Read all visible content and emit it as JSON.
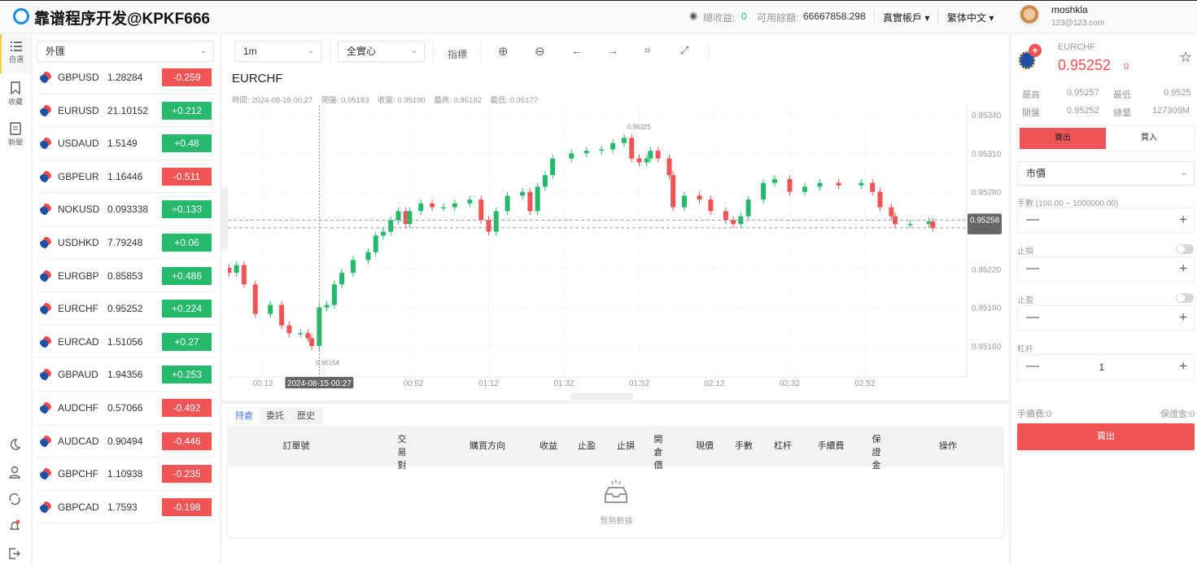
{
  "header": {
    "brand": "靠谱程序开发@KPKF666",
    "total_profit_label": "總收益:",
    "total_profit": "0",
    "balance_label": "可用餘額:",
    "balance": "66667858.298",
    "account": "真實帳戶",
    "language": "繁体中文",
    "user_name": "moshkla",
    "user_email": "123@123.com"
  },
  "sidebar": {
    "items": [
      {
        "label": "自選",
        "icon": "list-icon"
      },
      {
        "label": "收藏",
        "icon": "bookmark-icon"
      },
      {
        "label": "新聞",
        "icon": "news-icon"
      }
    ],
    "bottom_icons": [
      "moon-icon",
      "user-icon",
      "refresh-icon",
      "bell-icon",
      "logout-icon"
    ]
  },
  "symbol_list": {
    "category": "外匯",
    "rows": [
      {
        "symbol": "GBPUSD",
        "price": "1.28284",
        "change": "-0.259"
      },
      {
        "symbol": "EURUSD",
        "price": "21.10152",
        "change": "+0.212"
      },
      {
        "symbol": "USDAUD",
        "price": "1.5149",
        "change": "+0.48"
      },
      {
        "symbol": "GBPEUR",
        "price": "1.16446",
        "change": "-0.511"
      },
      {
        "symbol": "NOKUSD",
        "price": "0.093338",
        "change": "+0.133"
      },
      {
        "symbol": "USDHKD",
        "price": "7.79248",
        "change": "+0.06"
      },
      {
        "symbol": "EURGBP",
        "price": "0.85853",
        "change": "+0.486"
      },
      {
        "symbol": "EURCHF",
        "price": "0.95252",
        "change": "+0.224"
      },
      {
        "symbol": "EURCAD",
        "price": "1.51056",
        "change": "+0.27"
      },
      {
        "symbol": "GBPAUD",
        "price": "1.94356",
        "change": "+0.253"
      },
      {
        "symbol": "AUDCHF",
        "price": "0.57066",
        "change": "-0.492"
      },
      {
        "symbol": "AUDCAD",
        "price": "0.90494",
        "change": "-0.446"
      },
      {
        "symbol": "GBPCHF",
        "price": "1.10938",
        "change": "-0.235"
      },
      {
        "symbol": "GBPCAD",
        "price": "1.7593",
        "change": "-0.198"
      }
    ]
  },
  "colors": {
    "up": "#26b96b",
    "down": "#f05454",
    "accent": "#3a7afe",
    "highlight": "#f5c842"
  },
  "toolbar": {
    "interval": "1m",
    "mode": "全實心",
    "indicators": "指標",
    "icons": [
      "zoom-in-icon",
      "zoom-out-icon",
      "arrow-left-icon",
      "arrow-right-icon",
      "crop-icon",
      "fullscreen-icon"
    ]
  },
  "chart_title": "EURCHF",
  "crosshair_info": {
    "time": "時間: 2024-08-15 00:27",
    "open": "開盤: 0.95183",
    "close": "收盤: 0.95190",
    "high": "最高: 0.95192",
    "low": "最低: 0.95177",
    "time_tag": "2024-08-15 00:27"
  },
  "chart_data": {
    "type": "candlestick",
    "y_ticks": [
      "0.95340",
      "0.95310",
      "0.95280",
      "0.95220",
      "0.95190",
      "0.95160"
    ],
    "x_ticks": [
      "00:12",
      "00:52",
      "01:12",
      "01:32",
      "01:52",
      "02:12",
      "02:32",
      "02:52"
    ],
    "ylim": [
      0.95131,
      0.95351
    ],
    "xlim": [
      "00:03",
      "03:25"
    ],
    "max_label": "0.95325",
    "min_label": "0.95154",
    "last_price": "0.95258",
    "last_price_2": "0.95252",
    "candles": [
      [
        "00:03",
        0.95217
      ],
      [
        "00:05",
        0.95223
      ],
      [
        "00:07",
        0.95208
      ],
      [
        "00:10",
        0.95185
      ],
      [
        "00:14",
        0.95192
      ],
      [
        "00:17",
        0.95176
      ],
      [
        "00:19",
        0.9517
      ],
      [
        "00:22",
        0.9517
      ],
      [
        "00:24",
        0.95166
      ],
      [
        "00:25",
        0.9516
      ],
      [
        "00:27",
        0.9519
      ],
      [
        "00:29",
        0.95192
      ],
      [
        "00:31",
        0.95208
      ],
      [
        "00:33",
        0.95217
      ],
      [
        "00:36",
        0.95227
      ],
      [
        "00:40",
        0.95233
      ],
      [
        "00:42",
        0.95246
      ],
      [
        "00:44",
        0.95249
      ],
      [
        "00:46",
        0.95258
      ],
      [
        "00:48",
        0.95265
      ],
      [
        "00:50",
        0.95255
      ],
      [
        "00:51",
        0.95265
      ],
      [
        "00:54",
        0.95271
      ],
      [
        "00:57",
        0.95268
      ],
      [
        "01:00",
        0.95268
      ],
      [
        "01:03",
        0.95271
      ],
      [
        "01:07",
        0.95274
      ],
      [
        "01:10",
        0.95258
      ],
      [
        "01:12",
        0.95249
      ],
      [
        "01:14",
        0.95265
      ],
      [
        "01:17",
        0.95277
      ],
      [
        "01:21",
        0.9528
      ],
      [
        "01:23",
        0.95265
      ],
      [
        "01:25",
        0.95284
      ],
      [
        "01:27",
        0.95293
      ],
      [
        "01:29",
        0.95306
      ],
      [
        "01:34",
        0.9531
      ],
      [
        "01:38",
        0.95312
      ],
      [
        "01:42",
        0.95313
      ],
      [
        "01:45",
        0.95318
      ],
      [
        "01:48",
        0.95322
      ],
      [
        "01:50",
        0.95306
      ],
      [
        "01:52",
        0.95303
      ],
      [
        "01:54",
        0.95306
      ],
      [
        "01:55",
        0.95312
      ],
      [
        "01:57",
        0.95306
      ],
      [
        "02:00",
        0.95293
      ],
      [
        "02:01",
        0.95268
      ],
      [
        "02:04",
        0.95277
      ],
      [
        "02:08",
        0.95274
      ],
      [
        "02:11",
        0.95265
      ],
      [
        "02:15",
        0.95258
      ],
      [
        "02:17",
        0.95255
      ],
      [
        "02:19",
        0.95261
      ],
      [
        "02:21",
        0.95274
      ],
      [
        "02:25",
        0.95287
      ],
      [
        "02:28",
        0.9529
      ],
      [
        "02:32",
        0.9528
      ],
      [
        "02:36",
        0.95284
      ],
      [
        "02:40",
        0.95287
      ],
      [
        "02:45",
        0.95285
      ],
      [
        "02:51",
        0.95287
      ],
      [
        "02:54",
        0.9528
      ],
      [
        "02:56",
        0.95268
      ],
      [
        "02:59",
        0.95261
      ],
      [
        "03:00",
        0.95255
      ],
      [
        "03:04",
        0.95255
      ],
      [
        "03:09",
        0.95257
      ],
      [
        "03:10",
        0.95252
      ]
    ]
  },
  "positions": {
    "tabs": [
      "持倉",
      "委託",
      "歷史"
    ],
    "columns": [
      "訂單號",
      "交易對",
      "購買方向",
      "收益",
      "止盈",
      "止損",
      "開倉價",
      "現價",
      "手數",
      "杠杆",
      "手續費",
      "保證金",
      "操作"
    ],
    "empty": "暫無數據"
  },
  "ticket": {
    "symbol": "EURCHF",
    "price": "0.95252",
    "change": "0",
    "high_label": "最高",
    "high": "0.95257",
    "low_label": "最低",
    "low": "0.9525",
    "open_label": "開盤",
    "open": "0.95252",
    "volume_label": "總量",
    "volume": "127309M",
    "sell_tab": "賣出",
    "buy_tab": "買入",
    "order_type": "市價",
    "lots_label": "手數 (100.00 ~ 1000000.00)",
    "stop_loss_label": "止損",
    "take_profit_label": "止盈",
    "leverage_label": "杠杆",
    "leverage": "1",
    "fee": "手續費:0",
    "margin": "保證金:0",
    "submit": "賣出"
  }
}
